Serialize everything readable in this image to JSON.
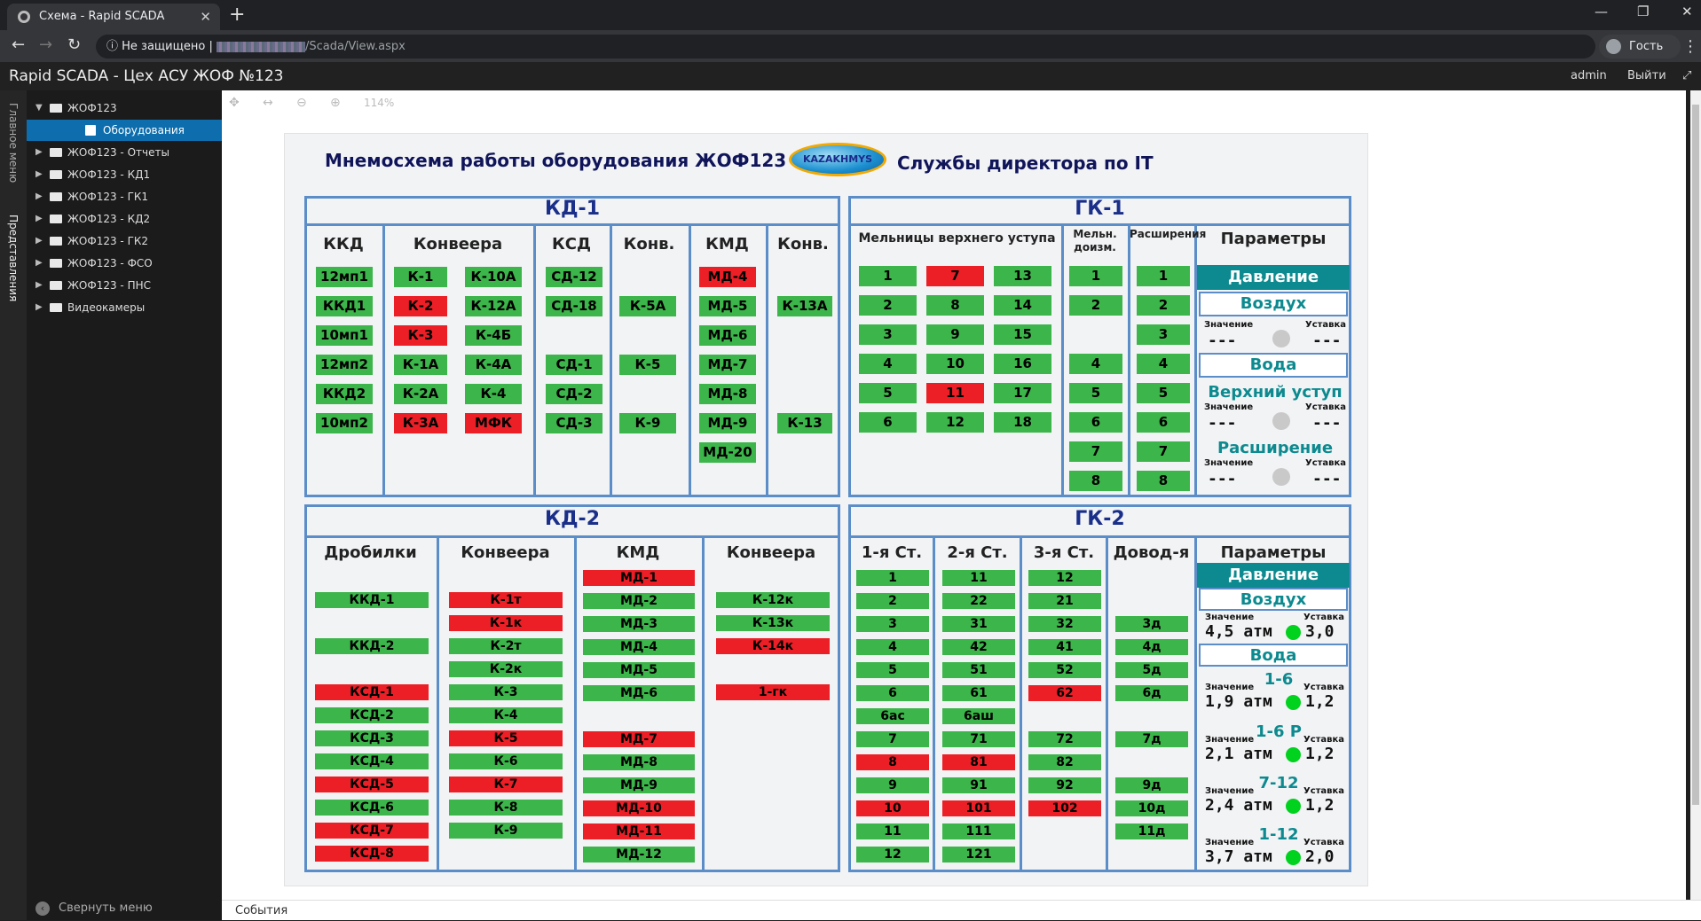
{
  "browser": {
    "tab_title": "Схема - Rapid SCADA",
    "security": "Не защищено",
    "url_path": "/Scada/View.aspx",
    "guest": "Гость"
  },
  "app": {
    "title": "Rapid SCADA - Цех АСУ ЖОФ №123",
    "user": "admin",
    "logout": "Выйти",
    "vtab_main": "Главное меню",
    "vtab_views": "Представления",
    "collapse": "Свернуть меню",
    "events": "События",
    "zoom": "114%"
  },
  "tree": [
    "ЖОФ123",
    "Оборудования",
    "ЖОФ123 - Отчеты",
    "ЖОФ123 - КД1",
    "ЖОФ123 - ГК1",
    "ЖОФ123 - КД2",
    "ЖОФ123 - ГК2",
    "ЖОФ123 - ФСО",
    "ЖОФ123 - ПНС",
    "Видеокамеры"
  ],
  "header": {
    "left": "Мнемосхема работы оборудования ЖОФ123",
    "logo": "KAZAKHMYS",
    "right": "Службы директора по IT"
  },
  "kd1": {
    "title": "КД-1",
    "cols": {
      "kkd": "ККД",
      "conv": "Конвеера",
      "ksd": "КСД",
      "conv2": "Конв.",
      "kmd": "КМД",
      "conv3": "Конв."
    },
    "kkd": [
      [
        "12мп1",
        "g"
      ],
      [
        "ККД1",
        "g"
      ],
      [
        "10мп1",
        "g"
      ],
      [
        "12мп2",
        "g"
      ],
      [
        "ККД2",
        "g"
      ],
      [
        "10мп2",
        "g"
      ]
    ],
    "conv_a": [
      [
        "К-1",
        "g"
      ],
      [
        "К-2",
        "r"
      ],
      [
        "К-3",
        "r"
      ],
      [
        "К-1А",
        "g"
      ],
      [
        "К-2А",
        "g"
      ],
      [
        "К-3А",
        "r"
      ]
    ],
    "conv_b": [
      [
        "К-10А",
        "g"
      ],
      [
        "К-12А",
        "g"
      ],
      [
        "К-4Б",
        "g"
      ],
      [
        "К-4А",
        "g"
      ],
      [
        "К-4",
        "g"
      ],
      [
        "МФК",
        "r"
      ]
    ],
    "ksd": [
      [
        "СД-12",
        "g"
      ],
      [
        "СД-18",
        "g"
      ],
      [
        "",
        ""
      ],
      [
        "СД-1",
        "g"
      ],
      [
        "СД-2",
        "g"
      ],
      [
        "СД-3",
        "g"
      ]
    ],
    "conv2": [
      [
        "",
        ""
      ],
      [
        "К-5А",
        "g"
      ],
      [
        "",
        ""
      ],
      [
        "К-5",
        "g"
      ],
      [
        "",
        ""
      ],
      [
        "К-9",
        "g"
      ]
    ],
    "kmd": [
      [
        "МД-4",
        "r"
      ],
      [
        "МД-5",
        "g"
      ],
      [
        "МД-6",
        "g"
      ],
      [
        "МД-7",
        "g"
      ],
      [
        "МД-8",
        "g"
      ],
      [
        "МД-9",
        "g"
      ],
      [
        "МД-20",
        "g"
      ]
    ],
    "conv3": [
      [
        "",
        ""
      ],
      [
        "К-13А",
        "g"
      ],
      [
        "",
        ""
      ],
      [
        "",
        ""
      ],
      [
        "",
        ""
      ],
      [
        "К-13",
        "g"
      ]
    ]
  },
  "gk1": {
    "title": "ГК-1",
    "mills": "Мельницы верхнего уступа",
    "meldoz": "Мельн. доизм.",
    "ext": "Расширения",
    "params": "Параметры",
    "m1": [
      [
        "1",
        "g"
      ],
      [
        "2",
        "g"
      ],
      [
        "3",
        "g"
      ],
      [
        "4",
        "g"
      ],
      [
        "5",
        "g"
      ],
      [
        "6",
        "g"
      ]
    ],
    "m2": [
      [
        "7",
        "r"
      ],
      [
        "8",
        "g"
      ],
      [
        "9",
        "g"
      ],
      [
        "10",
        "g"
      ],
      [
        "11",
        "r"
      ],
      [
        "12",
        "g"
      ]
    ],
    "m3": [
      [
        "13",
        "g"
      ],
      [
        "14",
        "g"
      ],
      [
        "15",
        "g"
      ],
      [
        "16",
        "g"
      ],
      [
        "17",
        "g"
      ],
      [
        "18",
        "g"
      ]
    ],
    "m4": [
      [
        "1",
        "g"
      ],
      [
        "2",
        "g"
      ],
      [
        "",
        ""
      ],
      [
        "4",
        "g"
      ],
      [
        "5",
        "g"
      ],
      [
        "6",
        "g"
      ],
      [
        "7",
        "g"
      ],
      [
        "8",
        "g"
      ]
    ],
    "m5": [
      [
        "1",
        "g"
      ],
      [
        "2",
        "g"
      ],
      [
        "3",
        "g"
      ],
      [
        "4",
        "g"
      ],
      [
        "5",
        "g"
      ],
      [
        "6",
        "g"
      ],
      [
        "7",
        "g"
      ],
      [
        "8",
        "g"
      ]
    ],
    "p": {
      "pressure": "Давление",
      "air": "Воздух",
      "val": "Значение",
      "set": "Уставка",
      "dash": "---",
      "water": "Вода",
      "upper": "Верхний уступ",
      "extp": "Расширение"
    }
  },
  "kd2": {
    "title": "КД-2",
    "crushers": "Дробилки",
    "conv": "Конвеера",
    "kmd": "КМД",
    "conv2": "Конвеера",
    "c1": [
      [
        "ККД-1",
        "g"
      ],
      [
        "",
        ""
      ],
      [
        "ККД-2",
        "g"
      ],
      [
        "",
        ""
      ],
      [
        "КСД-1",
        "r"
      ],
      [
        "КСД-2",
        "g"
      ],
      [
        "КСД-3",
        "g"
      ],
      [
        "КСД-4",
        "g"
      ],
      [
        "КСД-5",
        "r"
      ],
      [
        "КСД-6",
        "g"
      ],
      [
        "КСД-7",
        "r"
      ],
      [
        "КСД-8",
        "r"
      ]
    ],
    "c2": [
      [
        "К-1т",
        "r"
      ],
      [
        "К-1к",
        "r"
      ],
      [
        "К-2т",
        "g"
      ],
      [
        "К-2к",
        "g"
      ],
      [
        "К-3",
        "g"
      ],
      [
        "К-4",
        "g"
      ],
      [
        "К-5",
        "r"
      ],
      [
        "К-6",
        "g"
      ],
      [
        "К-7",
        "r"
      ],
      [
        "К-8",
        "g"
      ],
      [
        "К-9",
        "g"
      ]
    ],
    "c3": [
      [
        "МД-1",
        "r"
      ],
      [
        "МД-2",
        "g"
      ],
      [
        "МД-3",
        "g"
      ],
      [
        "МД-4",
        "g"
      ],
      [
        "МД-5",
        "g"
      ],
      [
        "МД-6",
        "g"
      ],
      [
        "",
        ""
      ],
      [
        "МД-7",
        "r"
      ],
      [
        "МД-8",
        "g"
      ],
      [
        "МД-9",
        "g"
      ],
      [
        "МД-10",
        "r"
      ],
      [
        "МД-11",
        "r"
      ],
      [
        "МД-12",
        "g"
      ]
    ],
    "c4": [
      [
        "К-12к",
        "g"
      ],
      [
        "К-13к",
        "g"
      ],
      [
        "К-14к",
        "r"
      ],
      [
        "",
        ""
      ],
      [
        "1-гк",
        "r"
      ]
    ]
  },
  "gk2": {
    "title": "ГК-2",
    "s1": "1-я Ст.",
    "s2": "2-я Ст.",
    "s3": "3-я Ст.",
    "s4": "Довод-я",
    "params": "Параметры",
    "c1": [
      [
        "1",
        "g"
      ],
      [
        "2",
        "g"
      ],
      [
        "3",
        "g"
      ],
      [
        "4",
        "g"
      ],
      [
        "5",
        "g"
      ],
      [
        "6",
        "g"
      ],
      [
        "6ас",
        "g"
      ],
      [
        "7",
        "g"
      ],
      [
        "8",
        "r"
      ],
      [
        "9",
        "g"
      ],
      [
        "10",
        "r"
      ],
      [
        "11",
        "g"
      ],
      [
        "12",
        "g"
      ]
    ],
    "c2": [
      [
        "11",
        "g"
      ],
      [
        "22",
        "g"
      ],
      [
        "31",
        "g"
      ],
      [
        "42",
        "g"
      ],
      [
        "51",
        "g"
      ],
      [
        "61",
        "g"
      ],
      [
        "6аш",
        "g"
      ],
      [
        "71",
        "g"
      ],
      [
        "81",
        "r"
      ],
      [
        "91",
        "g"
      ],
      [
        "101",
        "r"
      ],
      [
        "111",
        "g"
      ],
      [
        "121",
        "g"
      ]
    ],
    "c3": [
      [
        "12",
        "g"
      ],
      [
        "21",
        "g"
      ],
      [
        "32",
        "g"
      ],
      [
        "41",
        "g"
      ],
      [
        "52",
        "g"
      ],
      [
        "62",
        "r"
      ],
      [
        "",
        ""
      ],
      [
        "72",
        "g"
      ],
      [
        "82",
        "g"
      ],
      [
        "92",
        "g"
      ],
      [
        "102",
        "r"
      ]
    ],
    "c4": [
      [
        "",
        ""
      ],
      [
        "",
        ""
      ],
      [
        "3д",
        "g"
      ],
      [
        "4д",
        "g"
      ],
      [
        "5д",
        "g"
      ],
      [
        "6д",
        "g"
      ],
      [
        "",
        ""
      ],
      [
        "7д",
        "g"
      ],
      [
        "",
        ""
      ],
      [
        "9д",
        "g"
      ],
      [
        "10д",
        "g"
      ],
      [
        "11д",
        "g"
      ]
    ],
    "p": {
      "pressure": "Давление",
      "air": "Воздух",
      "val": "Значение",
      "set": "Уставка",
      "air_v": "4,5 атм",
      "air_s": "3,0",
      "water": "Вода",
      "rows": [
        {
          "l": "1-6",
          "v": "1,9 атм",
          "s": "1,2"
        },
        {
          "l": "1-6 Р",
          "v": "2,1 атм",
          "s": "1,2"
        },
        {
          "l": "7-12",
          "v": "2,4 атм",
          "s": "1,2"
        },
        {
          "l": "1-12",
          "v": "3,7 атм",
          "s": "2,0"
        }
      ]
    }
  }
}
